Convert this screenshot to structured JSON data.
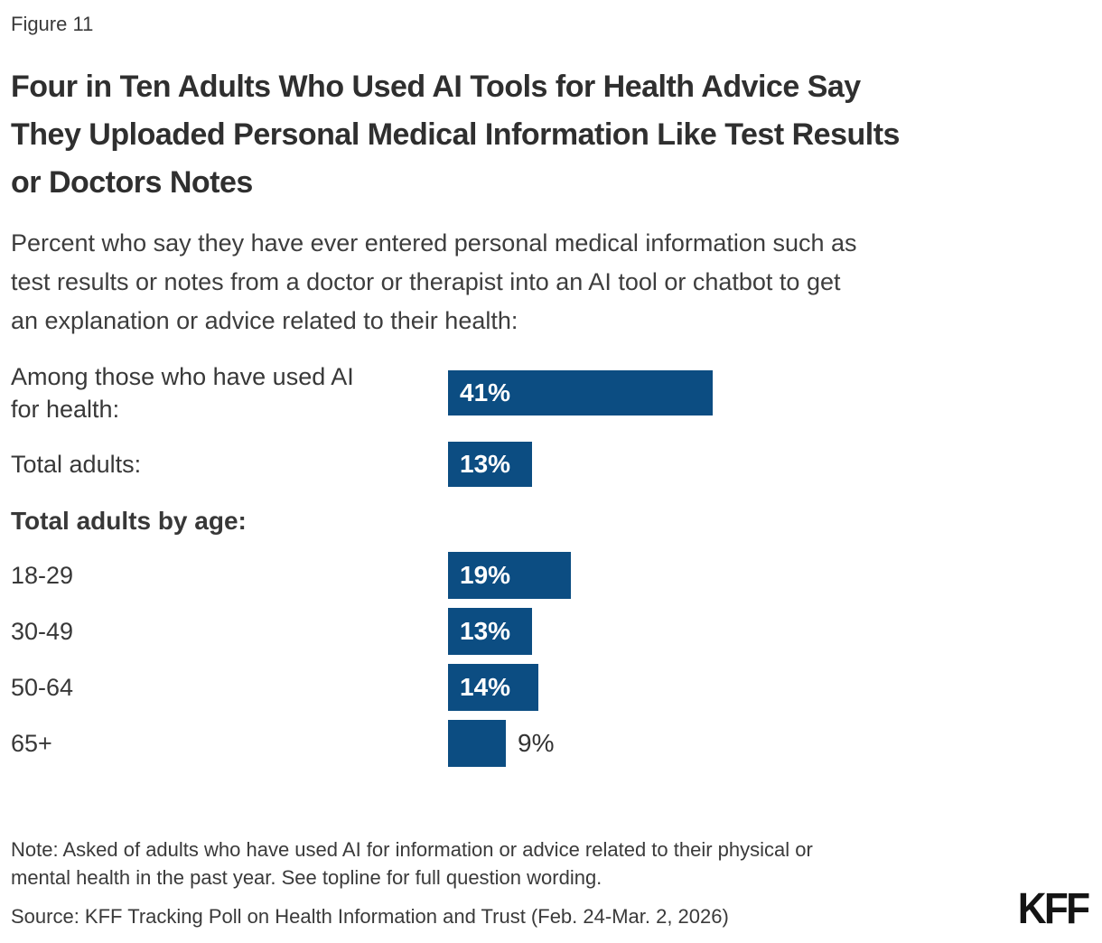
{
  "figure_label": "Figure 11",
  "title": "Four in Ten Adults Who Used AI Tools for Health Advice Say\nThey Uploaded Personal Medical Information Like Test Results\nor Doctors Notes",
  "subtitle": "Percent who say they have ever entered personal medical information such as\ntest results or notes from a doctor or therapist into an AI tool or chatbot to get\nan explanation or advice related to their health:",
  "chart_data": {
    "type": "bar",
    "orientation": "horizontal",
    "unit": "%",
    "xlim": [
      0,
      100
    ],
    "axes_hidden": true,
    "bar_color": "#0C4D82",
    "rows": [
      {
        "label": "Among those who have used AI\nfor health:",
        "value": 41,
        "value_label": "41%",
        "value_label_position": "inside",
        "kind": "lead"
      },
      {
        "label": "Total adults:",
        "value": 13,
        "value_label": "13%",
        "value_label_position": "inside",
        "kind": "total"
      },
      {
        "label": "Total adults by age:",
        "value": null,
        "value_label": null,
        "value_label_position": null,
        "kind": "header"
      },
      {
        "label": "18-29",
        "value": 19,
        "value_label": "19%",
        "value_label_position": "inside",
        "kind": "age"
      },
      {
        "label": "30-49",
        "value": 13,
        "value_label": "13%",
        "value_label_position": "inside",
        "kind": "age"
      },
      {
        "label": "50-64",
        "value": 14,
        "value_label": "14%",
        "value_label_position": "inside",
        "kind": "age"
      },
      {
        "label": "65+",
        "value": 9,
        "value_label": "9%",
        "value_label_position": "outside",
        "kind": "age"
      }
    ]
  },
  "note": "Note: Asked of adults who have used AI for information or advice related to their physical or\nmental health in the past year. See topline for full question wording.",
  "source": "Source: KFF Tracking Poll on Health Information and Trust (Feb. 24-Mar. 2, 2026)",
  "logo_text": "KFF",
  "colors": {
    "bar": "#0C4D82",
    "title_text": "#2F2F2F",
    "body_text": "#3A3A3A",
    "bar_label_inside": "#FFFFFF",
    "bar_label_outside": "#333333",
    "background": "#FFFFFF",
    "logo": "#141414"
  }
}
